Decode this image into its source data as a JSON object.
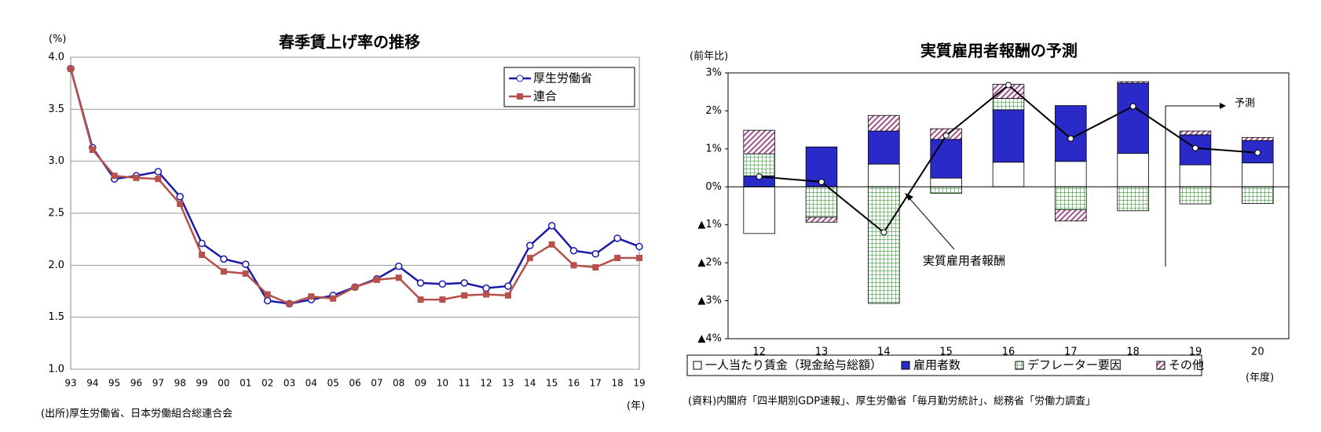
{
  "chart_data": [
    {
      "type": "line",
      "title": "春季賃上げ率の推移",
      "y_unit": "(%)",
      "x_unit": "(年)",
      "source": "(出所)厚生労働省、日本労働組合総連合会",
      "categories": [
        "93",
        "94",
        "95",
        "96",
        "97",
        "98",
        "99",
        "00",
        "01",
        "02",
        "03",
        "04",
        "05",
        "06",
        "07",
        "08",
        "09",
        "10",
        "11",
        "12",
        "13",
        "14",
        "15",
        "16",
        "17",
        "18",
        "19"
      ],
      "series": [
        {
          "name": "厚生労働省",
          "color": "#1a1aa8",
          "marker": "circle",
          "values": [
            3.89,
            3.13,
            2.83,
            2.86,
            2.9,
            2.66,
            2.21,
            2.06,
            2.01,
            1.66,
            1.63,
            1.67,
            1.71,
            1.79,
            1.87,
            1.99,
            1.83,
            1.82,
            1.83,
            1.78,
            1.8,
            2.19,
            2.38,
            2.14,
            2.11,
            2.26,
            2.18
          ]
        },
        {
          "name": "連合",
          "color": "#b5504a",
          "marker": "square",
          "values": [
            3.89,
            3.11,
            2.86,
            2.84,
            2.83,
            2.59,
            2.1,
            1.94,
            1.92,
            1.72,
            1.63,
            1.7,
            1.68,
            1.79,
            1.86,
            1.88,
            1.67,
            1.67,
            1.71,
            1.72,
            1.71,
            2.07,
            2.2,
            2.0,
            1.98,
            2.07,
            2.07
          ]
        }
      ],
      "ylim": [
        1,
        4
      ],
      "yticks": [
        {
          "value": 1,
          "label": "1.0"
        },
        1.5,
        {
          "value": 2,
          "label": "2.0"
        },
        2.5,
        {
          "value": 3,
          "label": "3.0"
        },
        3.5,
        {
          "value": 4,
          "label": "4.0"
        }
      ],
      "grid": true,
      "legend": "top-right"
    },
    {
      "type": "stacked-bar-line",
      "title": "実質雇用者報酬の予測",
      "y_unit": "(前年比)",
      "x_unit": "(年度)",
      "source": "(資料)内閣府「四半期別GDP速報」、厚生労働省「毎月勤労統計」、総務省「労働力調査」",
      "annotations": [
        "予測",
        "実質雇用者報酬"
      ],
      "categories": [
        "12",
        "13",
        "14",
        "15",
        "16",
        "17",
        "18",
        "19",
        "20"
      ],
      "series": [
        {
          "name": "一人当たり賃金（現金給与総額）",
          "color": "#ffffff",
          "values": [
            -1.23,
            0,
            0.6,
            0.23,
            0.65,
            0.67,
            0.88,
            0.58,
            0.63
          ]
        },
        {
          "name": "雇用者数",
          "color": "#2a2ac8",
          "values": [
            0.29,
            1.05,
            0.87,
            1.02,
            1.38,
            1.47,
            1.85,
            0.79,
            0.59
          ]
        },
        {
          "name": "デフレーター要因",
          "color": "#3a9a3a",
          "pattern": "grid",
          "values": [
            0.58,
            -0.8,
            -3.07,
            -0.17,
            0.3,
            -0.6,
            -0.63,
            -0.45,
            -0.44
          ]
        },
        {
          "name": "その他",
          "color": "#a0508a",
          "pattern": "diagonal",
          "values": [
            0.62,
            -0.13,
            0.41,
            0.28,
            0.37,
            -0.3,
            0.04,
            0.1,
            0.08
          ]
        }
      ],
      "line": {
        "name": "実質雇用者報酬",
        "color": "#000000",
        "values": [
          0.27,
          0.13,
          -1.2,
          1.35,
          2.68,
          1.27,
          2.12,
          1.02,
          0.9
        ]
      },
      "ylim": [
        -4,
        3
      ],
      "yticks": [
        {
          "value": 3,
          "label": "3%"
        },
        {
          "value": 2,
          "label": "2%"
        },
        {
          "value": 1,
          "label": "1%"
        },
        {
          "value": 0,
          "label": "0%"
        },
        {
          "value": -1,
          "label": "▲1%"
        },
        {
          "value": -2,
          "label": "▲2%"
        },
        {
          "value": -3,
          "label": "▲3%"
        },
        {
          "value": -4,
          "label": "▲4%"
        }
      ],
      "legend": "bottom"
    }
  ]
}
